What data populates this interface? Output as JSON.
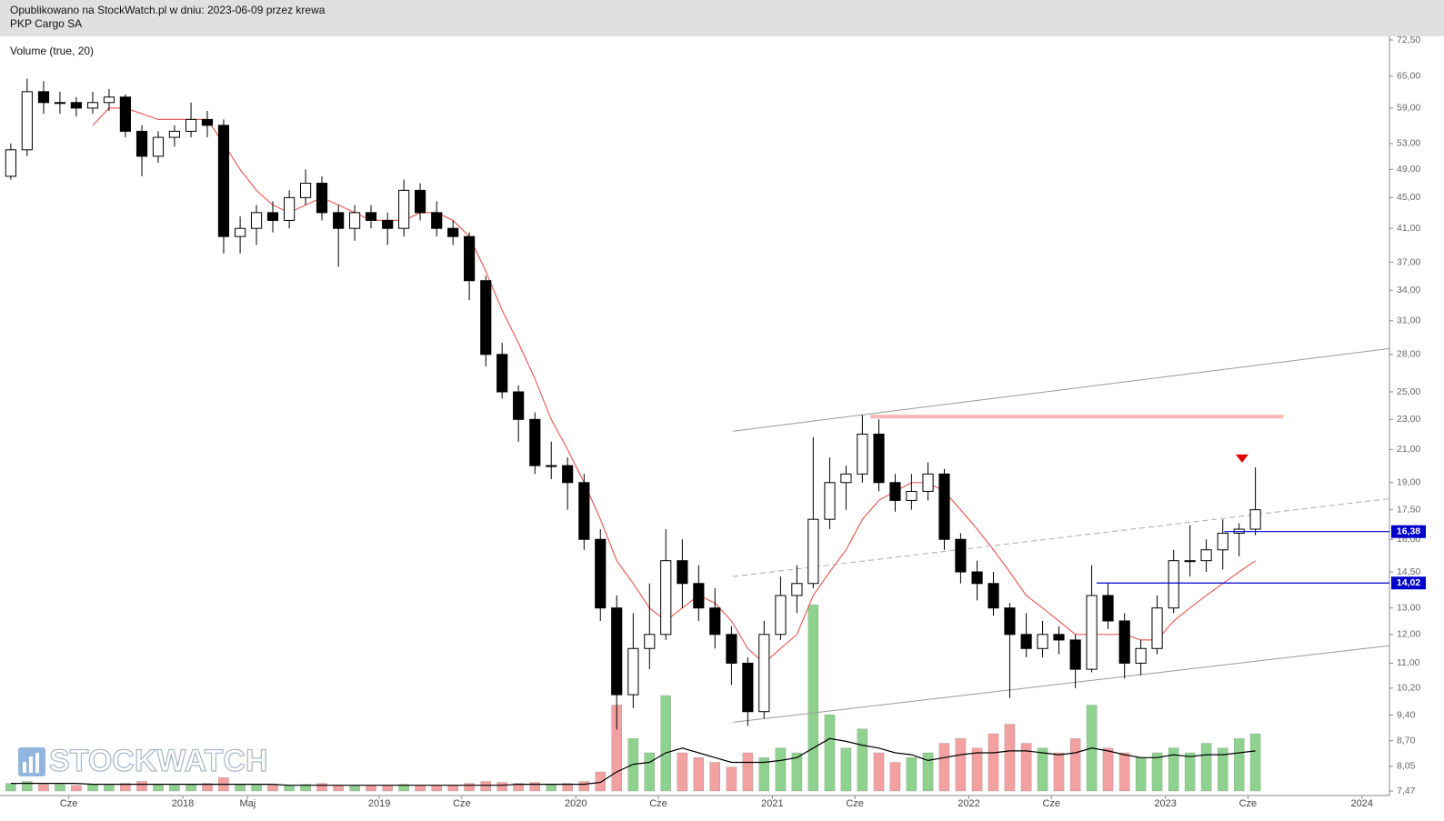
{
  "header": {
    "line1": "Opublikowano na StockWatch.pl w dniu: 2023-06-09 przez krewa",
    "line2": "PKP Cargo SA"
  },
  "chart_data": {
    "type": "candlestick",
    "indicator_label": "Volume (true, 20)",
    "watermark": "STOCKWATCH",
    "log_scale": true,
    "xlim": [
      2017.07,
      2024.14
    ],
    "ylim": [
      7.37,
      73.3
    ],
    "y2lim": [
      0,
      200
    ],
    "xticks": [
      {
        "value": 2017.42,
        "label": "Cze"
      },
      2018,
      {
        "value": 2018.33,
        "label": "Maj"
      },
      2019,
      {
        "value": 2019.42,
        "label": "Cze"
      },
      2020,
      {
        "value": 2020.42,
        "label": "Cze"
      },
      2021,
      {
        "value": 2021.42,
        "label": "Cze"
      },
      2022,
      {
        "value": 2022.42,
        "label": "Cze"
      },
      2023,
      {
        "value": 2023.42,
        "label": "Cze"
      },
      2024
    ],
    "yticks": [
      {
        "value": 72.5,
        "label": "72,50"
      },
      {
        "value": 65,
        "label": "65,00"
      },
      {
        "value": 59,
        "label": "59,00"
      },
      {
        "value": 53,
        "label": "53,00"
      },
      {
        "value": 49,
        "label": "49,00"
      },
      {
        "value": 45,
        "label": "45,00"
      },
      {
        "value": 41,
        "label": "41,00"
      },
      {
        "value": 37,
        "label": "37,00"
      },
      {
        "value": 34,
        "label": "34,00"
      },
      {
        "value": 31,
        "label": "31,00"
      },
      {
        "value": 28,
        "label": "28,00"
      },
      {
        "value": 25,
        "label": "25,00"
      },
      {
        "value": 23,
        "label": "23,00"
      },
      {
        "value": 21,
        "label": "21,00"
      },
      {
        "value": 19,
        "label": "19,00"
      },
      {
        "value": 17.5,
        "label": "17,50"
      },
      {
        "value": 16,
        "label": "16,00"
      },
      {
        "value": 14.5,
        "label": "14,50"
      },
      {
        "value": 13,
        "label": "13,00"
      },
      {
        "value": 12,
        "label": "12,00"
      },
      {
        "value": 11,
        "label": "11,00"
      },
      {
        "value": 10.2,
        "label": "10,20"
      },
      {
        "value": 9.4,
        "label": "9,40"
      },
      {
        "value": 8.7,
        "label": "8,70"
      },
      {
        "value": 8.05,
        "label": "8,05"
      },
      {
        "value": 7.47,
        "label": "7,47"
      }
    ],
    "x": [
      2017.125,
      2017.208,
      2017.292,
      2017.375,
      2017.458,
      2017.542,
      2017.625,
      2017.708,
      2017.792,
      2017.875,
      2017.958,
      2018.042,
      2018.125,
      2018.208,
      2018.292,
      2018.375,
      2018.458,
      2018.542,
      2018.625,
      2018.708,
      2018.792,
      2018.875,
      2018.958,
      2019.042,
      2019.125,
      2019.208,
      2019.292,
      2019.375,
      2019.458,
      2019.542,
      2019.625,
      2019.708,
      2019.792,
      2019.875,
      2019.958,
      2020.042,
      2020.125,
      2020.208,
      2020.292,
      2020.375,
      2020.458,
      2020.542,
      2020.625,
      2020.708,
      2020.792,
      2020.875,
      2020.958,
      2021.042,
      2021.125,
      2021.208,
      2021.292,
      2021.375,
      2021.458,
      2021.542,
      2021.625,
      2021.708,
      2021.792,
      2021.875,
      2021.958,
      2022.042,
      2022.125,
      2022.208,
      2022.292,
      2022.375,
      2022.458,
      2022.542,
      2022.625,
      2022.708,
      2022.792,
      2022.875,
      2022.958,
      2023.042,
      2023.125,
      2023.208,
      2023.292,
      2023.375,
      2023.458
    ],
    "ohlc": [
      [
        48,
        53,
        47.5,
        52
      ],
      [
        52,
        64.5,
        51,
        62
      ],
      [
        62,
        64,
        58,
        60
      ],
      [
        60,
        62,
        58,
        60
      ],
      [
        60,
        61,
        57.5,
        59
      ],
      [
        59,
        62,
        58,
        60
      ],
      [
        60,
        62.5,
        58.5,
        61
      ],
      [
        61,
        61.5,
        54,
        55
      ],
      [
        55,
        56,
        48,
        51
      ],
      [
        51,
        55,
        50,
        54
      ],
      [
        54,
        56,
        52.5,
        55
      ],
      [
        55,
        60,
        54,
        57
      ],
      [
        57,
        58.5,
        54,
        56
      ],
      [
        56,
        57,
        38,
        40
      ],
      [
        40,
        42.5,
        38,
        41
      ],
      [
        41,
        44,
        39,
        43
      ],
      [
        43,
        44.5,
        40.5,
        42
      ],
      [
        42,
        46,
        41,
        45
      ],
      [
        45,
        49,
        44,
        47
      ],
      [
        47,
        48,
        42,
        43
      ],
      [
        43,
        44,
        36.5,
        41
      ],
      [
        41,
        44,
        39.5,
        43
      ],
      [
        43,
        44,
        41,
        42
      ],
      [
        42,
        43,
        39,
        41
      ],
      [
        41,
        47.5,
        40,
        46
      ],
      [
        46,
        47,
        42,
        43
      ],
      [
        43,
        44.5,
        40,
        41
      ],
      [
        41,
        42,
        39,
        40
      ],
      [
        40,
        40.5,
        33,
        35
      ],
      [
        35,
        35.5,
        27,
        28
      ],
      [
        28,
        29,
        24.5,
        25
      ],
      [
        25,
        25.5,
        21.5,
        23
      ],
      [
        23,
        23.5,
        19.5,
        20
      ],
      [
        20,
        21.5,
        19.2,
        20
      ],
      [
        20,
        20.5,
        17.5,
        19
      ],
      [
        19,
        19.5,
        15.5,
        16
      ],
      [
        16,
        16.5,
        12.5,
        13
      ],
      [
        13,
        13.5,
        9.0,
        10
      ],
      [
        10,
        12.8,
        9.6,
        11.5
      ],
      [
        11.5,
        14,
        10.8,
        12
      ],
      [
        12,
        16.5,
        11.8,
        15
      ],
      [
        15,
        16,
        13,
        14
      ],
      [
        14,
        14.8,
        12.5,
        13
      ],
      [
        13,
        13.8,
        11.5,
        12
      ],
      [
        12,
        12.3,
        10.3,
        11
      ],
      [
        11,
        11.2,
        9.1,
        9.5
      ],
      [
        9.5,
        12.5,
        9.3,
        12
      ],
      [
        12,
        14.3,
        11.8,
        13.5
      ],
      [
        13.5,
        14.8,
        12.8,
        14
      ],
      [
        14,
        21.8,
        13.8,
        17
      ],
      [
        17,
        20.5,
        16.5,
        19
      ],
      [
        19,
        20,
        17.5,
        19.5
      ],
      [
        19.5,
        23.3,
        19,
        22
      ],
      [
        22,
        23,
        18.5,
        19
      ],
      [
        19,
        19.5,
        17.4,
        18
      ],
      [
        18,
        19.5,
        17.5,
        18.5
      ],
      [
        18.5,
        20.2,
        18,
        19.5
      ],
      [
        19.5,
        19.8,
        15.5,
        16
      ],
      [
        16,
        16.3,
        14,
        14.5
      ],
      [
        14.5,
        15,
        13.3,
        14
      ],
      [
        14,
        14.5,
        12.7,
        13
      ],
      [
        13,
        13.2,
        9.9,
        12
      ],
      [
        12,
        12.8,
        11.2,
        11.5
      ],
      [
        11.5,
        12.5,
        11.2,
        12
      ],
      [
        12,
        12.3,
        11.3,
        11.8
      ],
      [
        11.8,
        12,
        10.2,
        10.8
      ],
      [
        10.8,
        14.8,
        10.7,
        13.5
      ],
      [
        13.5,
        14,
        12.2,
        12.5
      ],
      [
        12.5,
        12.8,
        10.5,
        11
      ],
      [
        11,
        11.8,
        10.6,
        11.5
      ],
      [
        11.5,
        13.5,
        11.3,
        13
      ],
      [
        13,
        15.5,
        12.8,
        15
      ],
      [
        15,
        16.7,
        14.3,
        15
      ],
      [
        15,
        16,
        14.5,
        15.5
      ],
      [
        15.5,
        17,
        14.6,
        16.3
      ],
      [
        16.3,
        16.8,
        15.2,
        16.5
      ],
      [
        16.5,
        19.9,
        16.2,
        17.5
      ]
    ],
    "volume": [
      8,
      10,
      7,
      7,
      6,
      7,
      6,
      8,
      10,
      7,
      6,
      7,
      8,
      14,
      7,
      6,
      6,
      6,
      7,
      8,
      6,
      6,
      6,
      6,
      7,
      6,
      6,
      6,
      8,
      10,
      9,
      8,
      9,
      7,
      8,
      10,
      20,
      90,
      55,
      40,
      100,
      40,
      35,
      30,
      25,
      40,
      35,
      45,
      40,
      195,
      80,
      45,
      65,
      40,
      30,
      35,
      40,
      50,
      55,
      45,
      60,
      70,
      50,
      45,
      40,
      55,
      90,
      45,
      40,
      35,
      40,
      45,
      40,
      50,
      45,
      55,
      60
    ],
    "volume_ma": [
      8,
      8,
      8,
      8,
      8,
      7,
      7,
      7,
      7,
      7,
      7,
      7,
      7,
      7,
      7,
      7,
      7,
      6,
      6,
      6,
      6,
      6,
      6,
      6,
      6,
      6,
      6,
      6,
      6,
      6,
      6,
      7,
      7,
      7,
      7,
      7,
      9,
      20,
      28,
      30,
      40,
      45,
      40,
      35,
      30,
      30,
      30,
      32,
      35,
      45,
      55,
      52,
      48,
      45,
      40,
      38,
      32,
      35,
      38,
      40,
      40,
      42,
      42,
      40,
      38,
      40,
      45,
      42,
      38,
      35,
      35,
      38,
      36,
      38,
      38,
      40,
      42
    ],
    "price_ma": [
      null,
      null,
      null,
      null,
      null,
      56,
      59,
      59,
      58,
      57,
      57,
      57,
      57,
      53,
      49,
      46,
      44,
      43,
      44,
      45,
      44,
      43,
      42,
      42,
      42,
      43,
      43,
      42,
      40,
      36,
      32,
      29,
      26,
      23,
      21,
      19,
      17,
      15,
      14,
      13,
      12.5,
      13,
      13.5,
      13.2,
      12.5,
      11.5,
      11,
      11.5,
      12,
      13.5,
      14.5,
      15.5,
      17,
      18,
      18.5,
      19,
      19,
      18.5,
      17.5,
      16.5,
      15.5,
      14.5,
      13.5,
      13,
      12.5,
      12,
      12,
      12,
      12,
      11.8,
      11.8,
      12.5,
      13,
      13.5,
      14,
      14.5,
      15
    ],
    "up_color": "#8fd18f",
    "down_color": "#f2a0a0",
    "ma_color": "#e8605a",
    "volume_ma_color": "#000000",
    "trend_lines": [
      {
        "x": [
          2020.8,
          2024.14
        ],
        "y": [
          22.2,
          28.5
        ],
        "color": "#999999",
        "dashed": false,
        "width": 1
      },
      {
        "x": [
          2020.8,
          2024.14
        ],
        "y": [
          9.2,
          11.6
        ],
        "color": "#999999",
        "dashed": false,
        "width": 1
      },
      {
        "x": [
          2020.8,
          2024.14
        ],
        "y": [
          14.3,
          18.1
        ],
        "color": "#aaaaaa",
        "dashed": true,
        "width": 1
      },
      {
        "x": [
          2021.5,
          2023.6
        ],
        "y": [
          23.2,
          23.2
        ],
        "color": "#f4b6b6",
        "dashed": false,
        "width": 4
      }
    ],
    "levels": [
      {
        "value": 16.38,
        "label": "16,38",
        "x_start": 2023.3,
        "color": "#0000cc"
      },
      {
        "value": 14.02,
        "label": "14,02",
        "x_start": 2022.65,
        "color": "#0000cc"
      }
    ],
    "marker": {
      "x": 2023.39,
      "y": 20.4,
      "color": "#e00000"
    }
  }
}
